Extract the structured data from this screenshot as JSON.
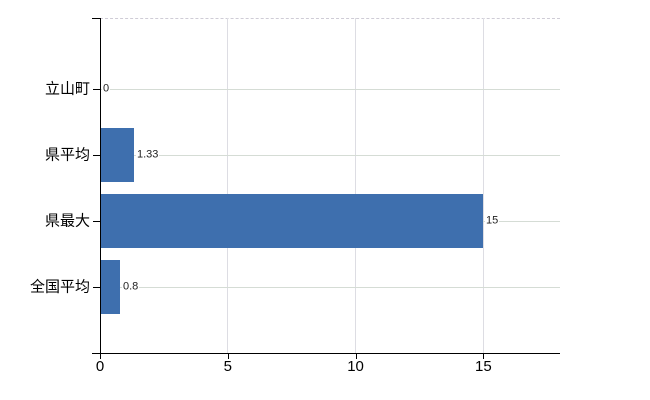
{
  "chart_data": {
    "type": "bar",
    "orientation": "horizontal",
    "categories": [
      "立山町",
      "県平均",
      "県最大",
      "全国平均"
    ],
    "values": [
      0,
      1.33,
      15,
      0.8
    ],
    "data_labels": [
      "0",
      "1.33",
      "15",
      "0.8"
    ],
    "x_ticks": [
      0,
      5,
      10,
      15
    ],
    "x_tick_labels": [
      "0",
      "5",
      "10",
      "15"
    ],
    "xlim": [
      0,
      18
    ],
    "grid": true,
    "legend": "none",
    "title": "",
    "colors": {
      "bar": "#3e6fae",
      "horizontal_gridline": "#d5dcd5",
      "vertical_gridline": "#dddde3",
      "top_border": "#cfccd6",
      "axis": "#000000",
      "tick_label": "#000000",
      "data_label": "#222222"
    }
  }
}
